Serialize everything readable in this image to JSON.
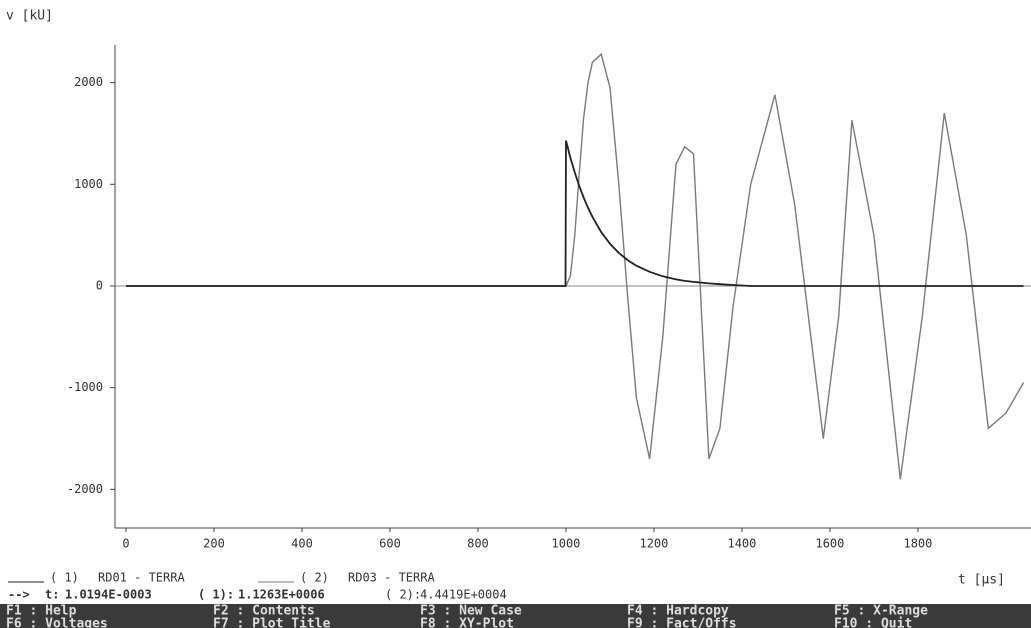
{
  "chart_data": {
    "type": "line",
    "y_label": "v [kU]",
    "x_label": "t [μs]",
    "x": [
      0,
      999,
      1000,
      1010,
      1020,
      1030,
      1040,
      1050,
      1060,
      1080,
      1100,
      1120,
      1140,
      1160,
      1190,
      1220,
      1250,
      1270,
      1290,
      1325,
      1350,
      1380,
      1420,
      1475,
      1520,
      1585,
      1620,
      1650,
      1700,
      1760,
      1810,
      1860,
      1910,
      1960,
      2000,
      2040
    ],
    "series": [
      {
        "name": "RD01 - TERRA",
        "marker": "( 1)",
        "color": "#222222",
        "values": [
          0,
          0,
          1430,
          1260,
          1115,
          985,
          870,
          770,
          680,
          530,
          415,
          325,
          255,
          200,
          140,
          95,
          65,
          50,
          40,
          25,
          18,
          10,
          0,
          0,
          0,
          0,
          0,
          0,
          0,
          0,
          0,
          0,
          0,
          0,
          0,
          0
        ]
      },
      {
        "name": "RD03 - TERRA",
        "marker": "( 2)",
        "color": "#7a7a7a",
        "values": [
          0,
          0,
          0,
          100,
          500,
          1100,
          1650,
          2000,
          2200,
          2280,
          1950,
          1000,
          -100,
          -1100,
          -1700,
          -500,
          1200,
          1370,
          1300,
          -1700,
          -1400,
          -200,
          1000,
          1880,
          800,
          -1500,
          -300,
          1630,
          500,
          -1900,
          -300,
          1700,
          500,
          -1400,
          -1250,
          -950
        ]
      }
    ],
    "xlim": [
      -25,
      2057
    ],
    "ylim": [
      -2380,
      2370
    ],
    "xticks": [
      0,
      200,
      400,
      600,
      800,
      1000,
      1200,
      1400,
      1600,
      1800
    ],
    "yticks": [
      -2000,
      -1000,
      0,
      1000,
      2000
    ]
  },
  "status": [
    "-->",
    "t:",
    "1.0194E-0003",
    "( 1):",
    "1.1263E+0006",
    "( 2):",
    "4.4419E+0004"
  ],
  "menu": [
    [
      "F1 : Help",
      "F2 : Contents",
      "F3 : New Case",
      "F4 : Hardcopy",
      "F5 : X-Range"
    ],
    [
      "F6 : Voltages",
      "F7 : Plot Title",
      "F8 : XY-Plot",
      "F9 : Fact/Offs",
      "F10 : Quit"
    ]
  ]
}
